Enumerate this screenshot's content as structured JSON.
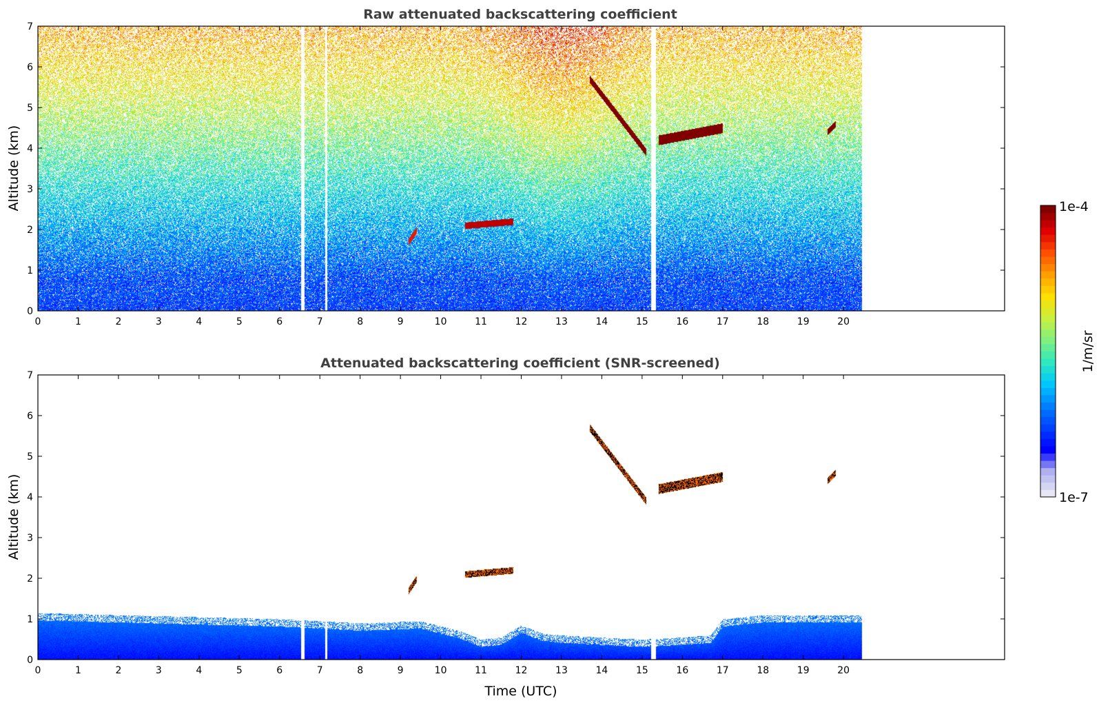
{
  "chart_data": [
    {
      "type": "heatmap",
      "title": "Raw attenuated backscattering coefficient",
      "xlabel": "",
      "ylabel": "Altitude (km)",
      "xlim": [
        0,
        24
      ],
      "ylim": [
        0,
        7
      ],
      "xticks": [
        "0",
        "1",
        "2",
        "3",
        "4",
        "5",
        "6",
        "7",
        "8",
        "9",
        "10",
        "11",
        "12",
        "13",
        "14",
        "15",
        "16",
        "17",
        "18",
        "19",
        "20"
      ],
      "yticks": [
        "0",
        "1",
        "2",
        "3",
        "4",
        "5",
        "6",
        "7"
      ],
      "data_end_time": 20.45,
      "gaps": [
        [
          6.52,
          6.62
        ],
        [
          7.12,
          7.17
        ],
        [
          15.22,
          15.34
        ]
      ],
      "features": [
        {
          "kind": "cloud-layer",
          "t": [
            15.4,
            17.0
          ],
          "alt": [
            4.2,
            4.5
          ],
          "level": 1.0
        },
        {
          "kind": "descending-cloud",
          "t": [
            13.7,
            15.1
          ],
          "alt": [
            5.7,
            3.9
          ],
          "level": 1.0
        },
        {
          "kind": "cloud-patch",
          "t": [
            19.6,
            19.8
          ],
          "alt": [
            4.4,
            4.6
          ],
          "level": 1.0
        },
        {
          "kind": "cloud-patch",
          "t": [
            10.6,
            11.8
          ],
          "alt": [
            2.1,
            2.2
          ],
          "level": 0.95
        },
        {
          "kind": "cloud-patch",
          "t": [
            9.2,
            9.4
          ],
          "alt": [
            1.7,
            2.0
          ],
          "level": 0.9
        }
      ],
      "grid": false
    },
    {
      "type": "heatmap",
      "title": "Attenuated backscattering coefficient (SNR-screened)",
      "xlabel": "Time (UTC)",
      "ylabel": "Altitude (km)",
      "xlim": [
        0,
        24
      ],
      "ylim": [
        0,
        7
      ],
      "xticks": [
        "0",
        "1",
        "2",
        "3",
        "4",
        "5",
        "6",
        "7",
        "8",
        "9",
        "10",
        "11",
        "12",
        "13",
        "14",
        "15",
        "16",
        "17",
        "18",
        "19",
        "20"
      ],
      "yticks": [
        "0",
        "1",
        "2",
        "3",
        "4",
        "5",
        "6",
        "7"
      ],
      "boundary_layer_top_km": [
        [
          0,
          1.15
        ],
        [
          2,
          1.1
        ],
        [
          4,
          1.05
        ],
        [
          6,
          1.0
        ],
        [
          8,
          0.9
        ],
        [
          9.5,
          0.95
        ],
        [
          10.5,
          0.7
        ],
        [
          11,
          0.5
        ],
        [
          11.5,
          0.55
        ],
        [
          12,
          0.85
        ],
        [
          12.5,
          0.65
        ],
        [
          13,
          0.6
        ],
        [
          14,
          0.55
        ],
        [
          15,
          0.5
        ],
        [
          16,
          0.55
        ],
        [
          16.7,
          0.6
        ],
        [
          17,
          1.0
        ],
        [
          18,
          1.1
        ],
        [
          20.45,
          1.1
        ]
      ],
      "grid": false
    }
  ],
  "colorbar": {
    "label": "1/m/sr",
    "max_label": "1e-4",
    "min_label": "1e-7"
  },
  "colors": {
    "colormap": [
      "#e6e6f5",
      "#b0b0f0",
      "#0000ff",
      "#0040ff",
      "#0080ff",
      "#00c8ff",
      "#30e8c0",
      "#80f080",
      "#c8f040",
      "#ffe000",
      "#ffa000",
      "#ff5000",
      "#e00000",
      "#800000"
    ],
    "frame": "#000000",
    "title": "#404040"
  }
}
